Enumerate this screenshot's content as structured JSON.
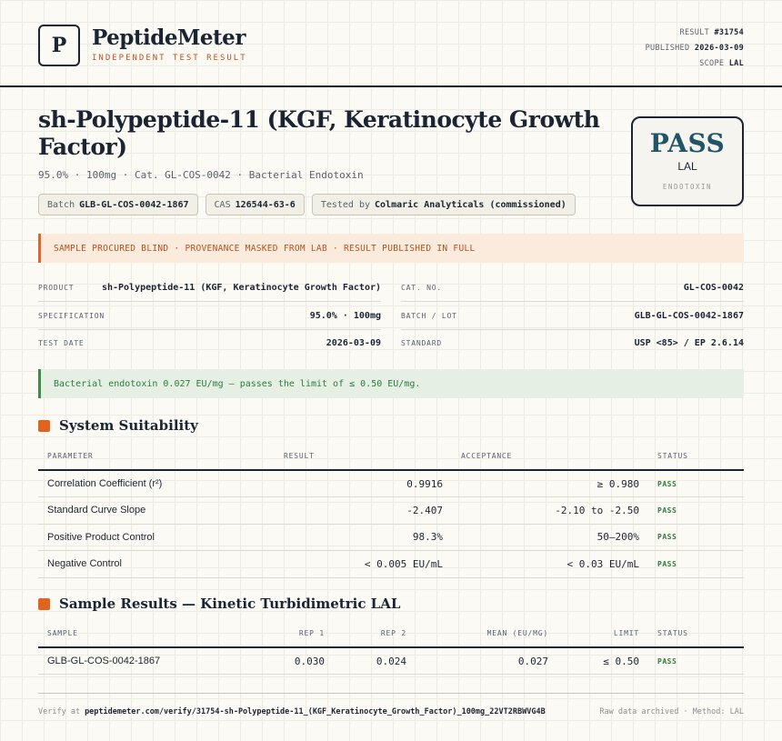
{
  "brand": {
    "logo_letter": "P",
    "name": "PeptideMeter",
    "tagline": "INDEPENDENT TEST RESULT"
  },
  "meta": {
    "result_label": "RESULT",
    "result_value": "#31754",
    "published_label": "PUBLISHED",
    "published_value": "2026-03-09",
    "scope_label": "SCOPE",
    "scope_value": "LAL"
  },
  "product": {
    "title": "sh-Polypeptide-11 (KGF, Keratinocyte Growth Factor)",
    "subtitle": "95.0% · 100mg · Cat. GL-COS-0042 · Bacterial Endotoxin",
    "chips": [
      {
        "label": "Batch",
        "value": "GLB-GL-COS-0042-1867"
      },
      {
        "label": "CAS",
        "value": "126544-63-6"
      },
      {
        "label": "Tested by",
        "value": "Colmaric Analyticals (commissioned)"
      }
    ]
  },
  "stamp": {
    "verdict": "PASS",
    "method": "LAL",
    "category": "ENDOTOXIN"
  },
  "notice": "SAMPLE PROCURED BLIND · PROVENANCE MASKED FROM LAB · RESULT PUBLISHED IN FULL",
  "info": {
    "left": [
      {
        "label": "PRODUCT",
        "value": "sh-Polypeptide-11 (KGF, Keratinocyte Growth Factor)"
      },
      {
        "label": "SPECIFICATION",
        "value": "95.0% · 100mg"
      },
      {
        "label": "TEST DATE",
        "value": "2026-03-09"
      }
    ],
    "right": [
      {
        "label": "CAT. NO.",
        "value": "GL-COS-0042"
      },
      {
        "label": "BATCH / LOT",
        "value": "GLB-GL-COS-0042-1867"
      },
      {
        "label": "STANDARD",
        "value": "USP <85> / EP 2.6.14"
      }
    ]
  },
  "verdict_text": "Bacterial endotoxin 0.027 EU/mg — passes the limit of ≤ 0.50 EU/mg.",
  "suitability": {
    "title": "System Suitability",
    "headers": [
      "PARAMETER",
      "RESULT",
      "ACCEPTANCE",
      "STATUS"
    ],
    "rows": [
      {
        "parameter": "Correlation Coefficient (r²)",
        "result": "0.9916",
        "acceptance": "≥ 0.980",
        "status": "PASS"
      },
      {
        "parameter": "Standard Curve Slope",
        "result": "-2.407",
        "acceptance": "-2.10 to -2.50",
        "status": "PASS"
      },
      {
        "parameter": "Positive Product Control",
        "result": "98.3%",
        "acceptance": "50–200%",
        "status": "PASS"
      },
      {
        "parameter": "Negative Control",
        "result": "< 0.005 EU/mL",
        "acceptance": "< 0.03 EU/mL",
        "status": "PASS"
      }
    ]
  },
  "samples": {
    "title": "Sample Results — Kinetic Turbidimetric LAL",
    "headers": [
      "SAMPLE",
      "REP 1",
      "REP 2",
      "MEAN (EU/MG)",
      "LIMIT",
      "STATUS"
    ],
    "rows": [
      {
        "sample": "GLB-GL-COS-0042-1867",
        "rep1": "0.030",
        "rep2": "0.024",
        "mean": "0.027",
        "limit": "≤ 0.50",
        "status": "PASS"
      }
    ]
  },
  "footer": {
    "verify_label": "Verify at",
    "verify_url": "peptidemeter.com/verify/31754-sh-Polypeptide-11_(KGF_Keratinocyte_Growth_Factor)_100mg_22VT2RBWVG4B",
    "right_text": "Raw data archived · Method: LAL"
  }
}
